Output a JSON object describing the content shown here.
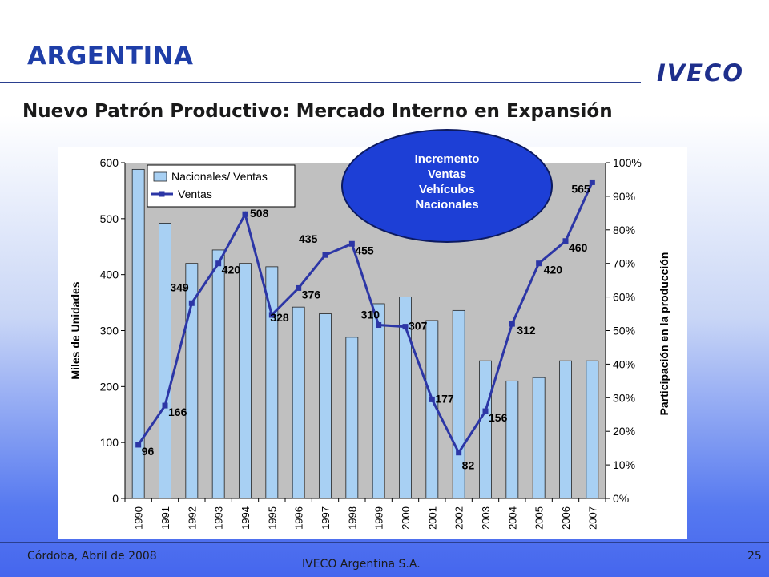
{
  "header": {
    "country": "ARGENTINA",
    "logo_text": "IVECO"
  },
  "subtitle": "Nuevo Patrón Productivo: Mercado Interno en Expansión",
  "callout": {
    "lines": [
      "Incremento",
      "Ventas",
      "Vehículos",
      "Nacionales"
    ]
  },
  "footer": {
    "date": "Córdoba, Abril de 2008",
    "company": "IVECO Argentina S.A.",
    "page": "25"
  },
  "colors": {
    "bar_fill": "#a8d0f3",
    "bar_stroke": "#222222",
    "line": "#2c36a6",
    "plot_bg": "#c0c0c0",
    "accent": "#1f3ea8",
    "callout": "#1d3fd6"
  },
  "chart_data": {
    "type": "bar",
    "categories": [
      "1990",
      "1991",
      "1992",
      "1993",
      "1994",
      "1995",
      "1996",
      "1997",
      "1998",
      "1999",
      "2000",
      "2001",
      "2002",
      "2003",
      "2004",
      "2005",
      "2006",
      "2007"
    ],
    "series": [
      {
        "name": "Nacionales/ Ventas",
        "type": "bar",
        "axis": "right",
        "unit": "%",
        "values": [
          98,
          82,
          70,
          74,
          70,
          69,
          57,
          55,
          48,
          58,
          60,
          53,
          56,
          41,
          35,
          36,
          41,
          41
        ]
      },
      {
        "name": "Ventas",
        "type": "line",
        "axis": "left",
        "unit": "miles",
        "values": [
          96,
          166,
          349,
          420,
          508,
          328,
          376,
          435,
          455,
          310,
          307,
          177,
          82,
          156,
          312,
          420,
          460,
          565
        ]
      }
    ],
    "data_labels": [
      "96",
      "166",
      "349",
      "420",
      "508",
      "328",
      "376",
      "435",
      "455",
      "310",
      "307",
      "177",
      "82",
      "156",
      "312",
      "420",
      "460",
      "565"
    ],
    "ylabel": "Miles de Unidades",
    "y2label": "Participación en la producción",
    "ylim": [
      0,
      600
    ],
    "yticks": [
      "0",
      "100",
      "200",
      "300",
      "400",
      "500",
      "600"
    ],
    "y2lim": [
      0,
      100
    ],
    "y2ticks": [
      "0%",
      "10%",
      "20%",
      "30%",
      "40%",
      "50%",
      "60%",
      "70%",
      "80%",
      "90%",
      "100%"
    ],
    "legend_position": "top-left",
    "grid": false
  }
}
